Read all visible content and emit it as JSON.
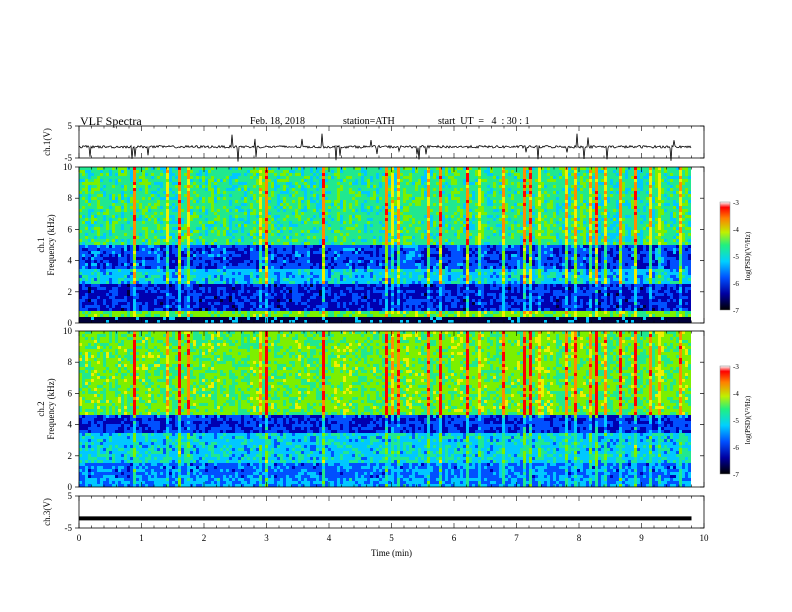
{
  "header": {
    "title": "VLF Spectra",
    "date": "Feb. 18, 2018",
    "station": "station=ATH",
    "start": "start  UT  =   4  : 30 : 1"
  },
  "chart_data": [
    {
      "type": "line",
      "name": "ch1-waveform",
      "ylabel": "ch.1(V)",
      "ylim": [
        -5,
        5
      ],
      "yticks": [
        "5",
        "-5"
      ],
      "xlim": [
        0,
        10
      ],
      "baseline": -1.5,
      "note_values": "noisy trace around -1.5 V with spikes"
    },
    {
      "type": "heatmap",
      "name": "ch1-spectrogram",
      "ylabel": "ch.1\nFrequency (kHz)",
      "ylim": [
        0,
        10
      ],
      "yticks": [
        "0",
        "2",
        "4",
        "6",
        "8",
        "10"
      ],
      "xlim": [
        0,
        10
      ],
      "colorbar": {
        "label": "log(PSD)(V²/Hz)",
        "range": [
          -7,
          -3
        ],
        "ticks": [
          "-3",
          "-4",
          "-5",
          "-6",
          "-7"
        ]
      }
    },
    {
      "type": "heatmap",
      "name": "ch2-spectrogram",
      "ylabel": "ch.2\nFrequency (kHz)",
      "ylim": [
        0,
        10
      ],
      "yticks": [
        "0",
        "2",
        "4",
        "6",
        "8",
        "10"
      ],
      "xlim": [
        0,
        10
      ],
      "colorbar": {
        "label": "log(PSD)(V²/Hz)",
        "range": [
          -7,
          -3
        ],
        "ticks": [
          "-3",
          "-4",
          "-5",
          "-6",
          "-7"
        ]
      }
    },
    {
      "type": "line",
      "name": "ch3-waveform",
      "ylabel": "ch.3(V)",
      "ylim": [
        -5,
        5
      ],
      "yticks": [
        "5",
        "-5"
      ],
      "xlim": [
        0,
        10
      ],
      "baseline": -2,
      "note_values": "flat trace near -2 V"
    }
  ],
  "xaxis": {
    "label": "Time  (min)",
    "ticks": [
      "0",
      "1",
      "2",
      "3",
      "4",
      "5",
      "6",
      "7",
      "8",
      "9",
      "10"
    ],
    "data_end": 9.8
  },
  "colors": {
    "scale": [
      "#00003a",
      "#0000b0",
      "#0050ff",
      "#00c8ff",
      "#20e890",
      "#7cf000",
      "#f0f000",
      "#ff8c00",
      "#ff0000"
    ]
  }
}
